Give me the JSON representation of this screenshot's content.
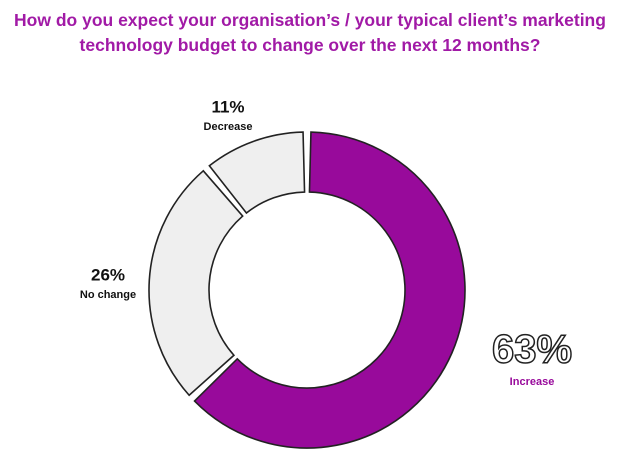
{
  "chart_data": {
    "type": "pie",
    "donut": true,
    "title": "How do you expect your organisation’s / your typical client’s marketing technology budget to change over the next 12 months?",
    "categories": [
      "Increase",
      "No change",
      "Decrease"
    ],
    "values": [
      63,
      26,
      11
    ],
    "value_labels": [
      "63%",
      "26%",
      "11%"
    ],
    "colors": [
      "#980a9b",
      "#efefef",
      "#efefef"
    ]
  }
}
